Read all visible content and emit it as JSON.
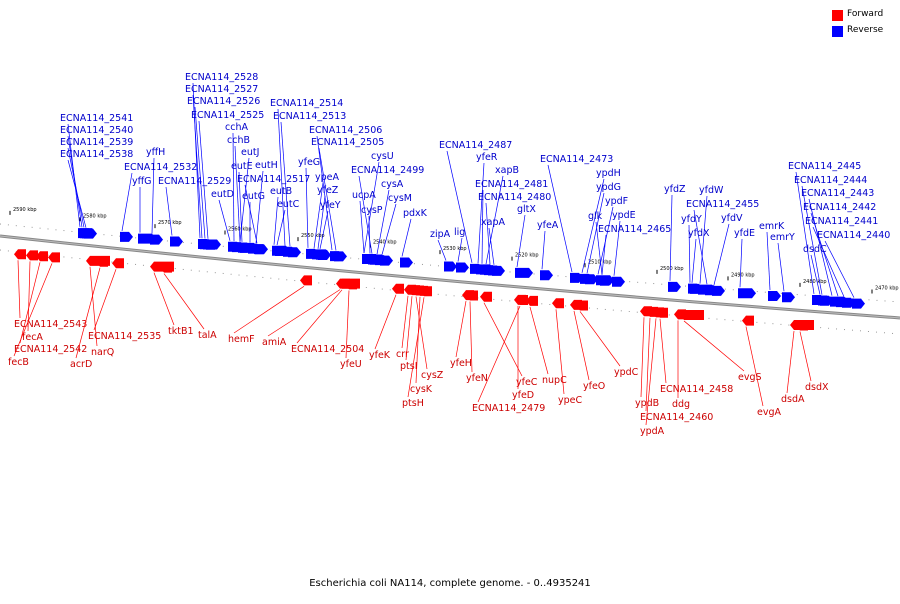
{
  "caption": "Escherichia coli NA114, complete genome. - 0..4935241",
  "legend": [
    {
      "label": "Forward",
      "color": "#ff0000"
    },
    {
      "label": "Reverse",
      "color": "#0000ff"
    }
  ],
  "colors": {
    "forward": "#ff0000",
    "reverse": "#0000ff",
    "forward_label": "#cc0000",
    "reverse_label": "#0000cc",
    "backbone": "#888888"
  },
  "ticks": [
    "2590 kbp",
    "2580 kbp",
    "2570 kbp",
    "2560 kbp",
    "2550 kbp",
    "2540 kbp",
    "2530 kbp",
    "2520 kbp",
    "2510 kbp",
    "2500 kbp",
    "2490 kbp",
    "2480 kbp",
    "2470 kbp"
  ],
  "reverse_genes": [
    "ECNA114_2541",
    "ECNA114_2540",
    "ECNA114_2539",
    "ECNA114_2538",
    "yffH",
    "yffG",
    "ECNA114_2532",
    "ECNA114_2529",
    "ECNA114_2528",
    "ECNA114_2527",
    "ECNA114_2526",
    "ECNA114_2525",
    "cchA",
    "cchB",
    "eutJ",
    "eutE",
    "eutH",
    "eutD",
    "eutG",
    "ECNA114_2517",
    "eutB",
    "eutC",
    "ECNA114_2514",
    "ECNA114_2513",
    "yfeG",
    "ypeA",
    "yfeZ",
    "yfeY",
    "ECNA114_2506",
    "ECNA114_2505",
    "cysU",
    "ECNA114_2499",
    "ucpA",
    "cysA",
    "cysM",
    "cysP",
    "pdxK",
    "zipA",
    "lig",
    "ECNA114_2487",
    "yfeR",
    "xapB",
    "ECNA114_2481",
    "ECNA114_2480",
    "xapA",
    "gltX",
    "yfeA",
    "ECNA114_2473",
    "ypdH",
    "ypdG",
    "ypdF",
    "glk",
    "ypdE",
    "ECNA114_2465",
    "yfdZ",
    "yfdW",
    "ECNA114_2455",
    "yfdY",
    "yfdV",
    "yfdX",
    "yfdE",
    "emrK",
    "emrY",
    "ECNA114_2445",
    "ECNA114_2444",
    "ECNA114_2443",
    "ECNA114_2442",
    "ECNA114_2441",
    "dsdC",
    "ECNA114_2440"
  ],
  "forward_genes": [
    "ECNA114_2543",
    "fecA",
    "ECNA114_2542",
    "fecB",
    "narQ",
    "acrD",
    "ECNA114_2535",
    "tktB1",
    "talA",
    "hemF",
    "amiA",
    "ECNA114_2504",
    "yfeU",
    "yfeK",
    "crr",
    "ptsI",
    "cysZ",
    "cysK",
    "ptsH",
    "yfeH",
    "yfeN",
    "yfeC",
    "yfeD",
    "ECNA114_2479",
    "nupC",
    "ypeC",
    "yfeO",
    "ypdC",
    "ypdB",
    "ECNA114_2460",
    "ypdA",
    "ECNA114_2458",
    "ddg",
    "evgS",
    "evgA",
    "dsdA",
    "dsdX"
  ]
}
